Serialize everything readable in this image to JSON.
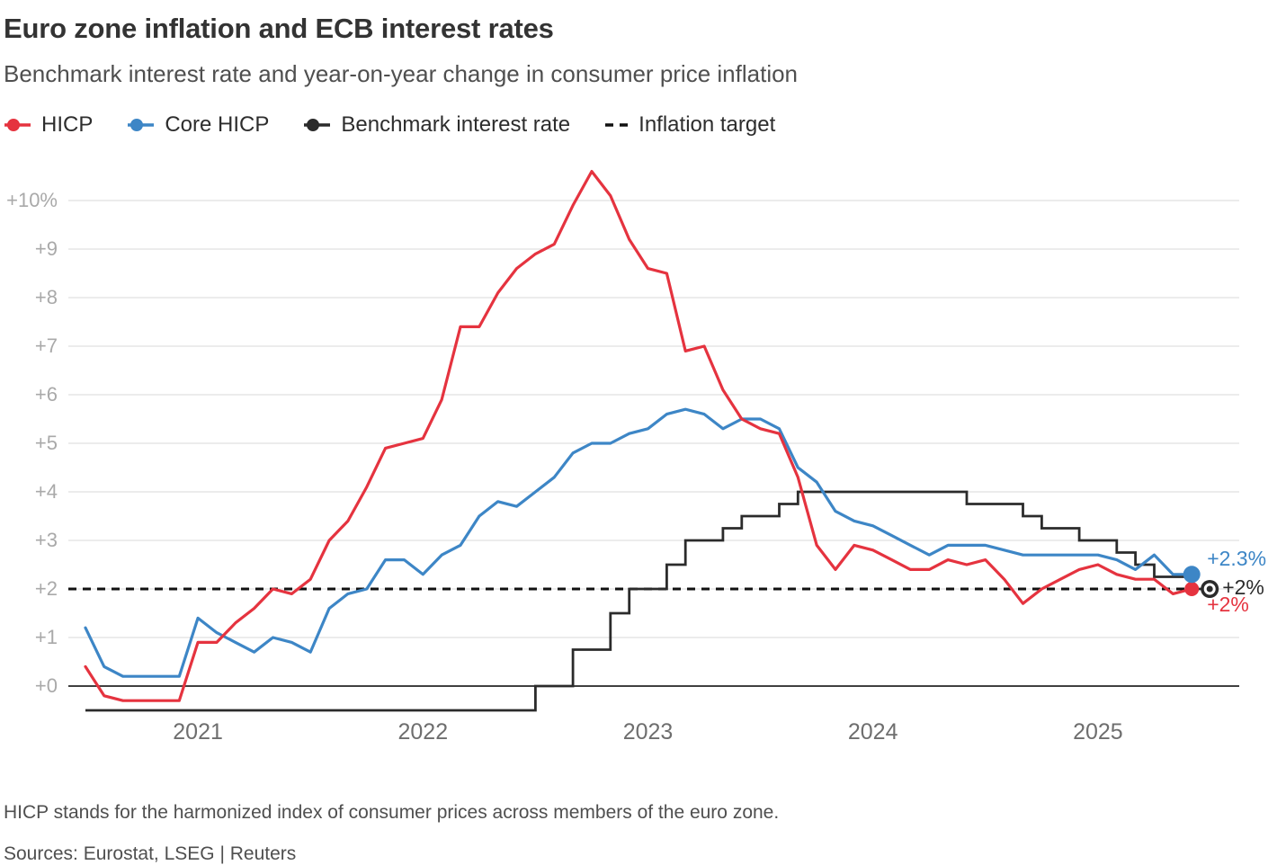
{
  "header": {
    "title": "Euro zone inflation and ECB interest rates",
    "subtitle": "Benchmark interest rate and year-on-year change in consumer price inflation"
  },
  "footer": {
    "note": "HICP stands for the harmonized index of consumer prices across members of the euro zone.",
    "sources": "Sources: Eurostat, LSEG | Reuters"
  },
  "chart_data": {
    "type": "line",
    "x_start": "2020-07",
    "x_end": "2025-06",
    "x_frequency": "monthly",
    "y_axis": {
      "unit": "%",
      "min": -0.5,
      "max": 10.6,
      "ticks": [
        {
          "value": 0,
          "label": "+0"
        },
        {
          "value": 1,
          "label": "+1"
        },
        {
          "value": 2,
          "label": "+2"
        },
        {
          "value": 3,
          "label": "+3"
        },
        {
          "value": 4,
          "label": "+4"
        },
        {
          "value": 5,
          "label": "+5"
        },
        {
          "value": 6,
          "label": "+6"
        },
        {
          "value": 7,
          "label": "+7"
        },
        {
          "value": 8,
          "label": "+8"
        },
        {
          "value": 9,
          "label": "+9"
        },
        {
          "value": 10,
          "label": "+10%"
        }
      ]
    },
    "x_axis": {
      "ticks": [
        {
          "year": 2021,
          "label": "2021"
        },
        {
          "year": 2022,
          "label": "2022"
        },
        {
          "year": 2023,
          "label": "2023"
        },
        {
          "year": 2024,
          "label": "2024"
        },
        {
          "year": 2025,
          "label": "2025"
        }
      ]
    },
    "series": [
      {
        "name": "HICP",
        "type": "line",
        "color": "#e5333f",
        "values": [
          0.4,
          -0.2,
          -0.3,
          -0.3,
          -0.3,
          -0.3,
          0.9,
          0.9,
          1.3,
          1.6,
          2.0,
          1.9,
          2.2,
          3.0,
          3.4,
          4.1,
          4.9,
          5.0,
          5.1,
          5.9,
          7.4,
          7.4,
          8.1,
          8.6,
          8.9,
          9.1,
          9.9,
          10.6,
          10.1,
          9.2,
          8.6,
          8.5,
          6.9,
          7.0,
          6.1,
          5.5,
          5.3,
          5.2,
          4.3,
          2.9,
          2.4,
          2.9,
          2.8,
          2.6,
          2.4,
          2.4,
          2.6,
          2.5,
          2.6,
          2.2,
          1.7,
          2.0,
          2.2,
          2.4,
          2.5,
          2.3,
          2.2,
          2.2,
          1.9,
          2.0
        ]
      },
      {
        "name": "Core HICP",
        "type": "line",
        "color": "#3d86c6",
        "values": [
          1.2,
          0.4,
          0.2,
          0.2,
          0.2,
          0.2,
          1.4,
          1.1,
          0.9,
          0.7,
          1.0,
          0.9,
          0.7,
          1.6,
          1.9,
          2.0,
          2.6,
          2.6,
          2.3,
          2.7,
          2.9,
          3.5,
          3.8,
          3.7,
          4.0,
          4.3,
          4.8,
          5.0,
          5.0,
          5.2,
          5.3,
          5.6,
          5.7,
          5.6,
          5.3,
          5.5,
          5.5,
          5.3,
          4.5,
          4.2,
          3.6,
          3.4,
          3.3,
          3.1,
          2.9,
          2.7,
          2.9,
          2.9,
          2.9,
          2.8,
          2.7,
          2.7,
          2.7,
          2.7,
          2.7,
          2.6,
          2.4,
          2.7,
          2.3,
          2.3
        ]
      },
      {
        "name": "Benchmark interest rate",
        "type": "step",
        "color": "#2b2b2b",
        "values": [
          -0.5,
          -0.5,
          -0.5,
          -0.5,
          -0.5,
          -0.5,
          -0.5,
          -0.5,
          -0.5,
          -0.5,
          -0.5,
          -0.5,
          -0.5,
          -0.5,
          -0.5,
          -0.5,
          -0.5,
          -0.5,
          -0.5,
          -0.5,
          -0.5,
          -0.5,
          -0.5,
          -0.5,
          0.0,
          0.0,
          0.75,
          0.75,
          1.5,
          2.0,
          2.0,
          2.5,
          3.0,
          3.0,
          3.25,
          3.5,
          3.5,
          3.75,
          4.0,
          4.0,
          4.0,
          4.0,
          4.0,
          4.0,
          4.0,
          4.0,
          4.0,
          3.75,
          3.75,
          3.75,
          3.5,
          3.25,
          3.25,
          3.0,
          3.0,
          2.75,
          2.5,
          2.25,
          2.25,
          2.0
        ]
      },
      {
        "name": "Inflation target",
        "type": "target",
        "color": "#111111",
        "value": 2
      }
    ],
    "end_labels": [
      {
        "text": "+2.3%",
        "series": "Core HICP"
      },
      {
        "text": "+2%",
        "series": "Benchmark interest rate"
      },
      {
        "text": "+2%",
        "series": "HICP"
      }
    ],
    "style": {
      "grid_color": "#d9d9d9",
      "zero_line_color": "#404040",
      "y_tick_color": "#a9a9a9",
      "x_tick_color": "#6e6e6e"
    }
  }
}
